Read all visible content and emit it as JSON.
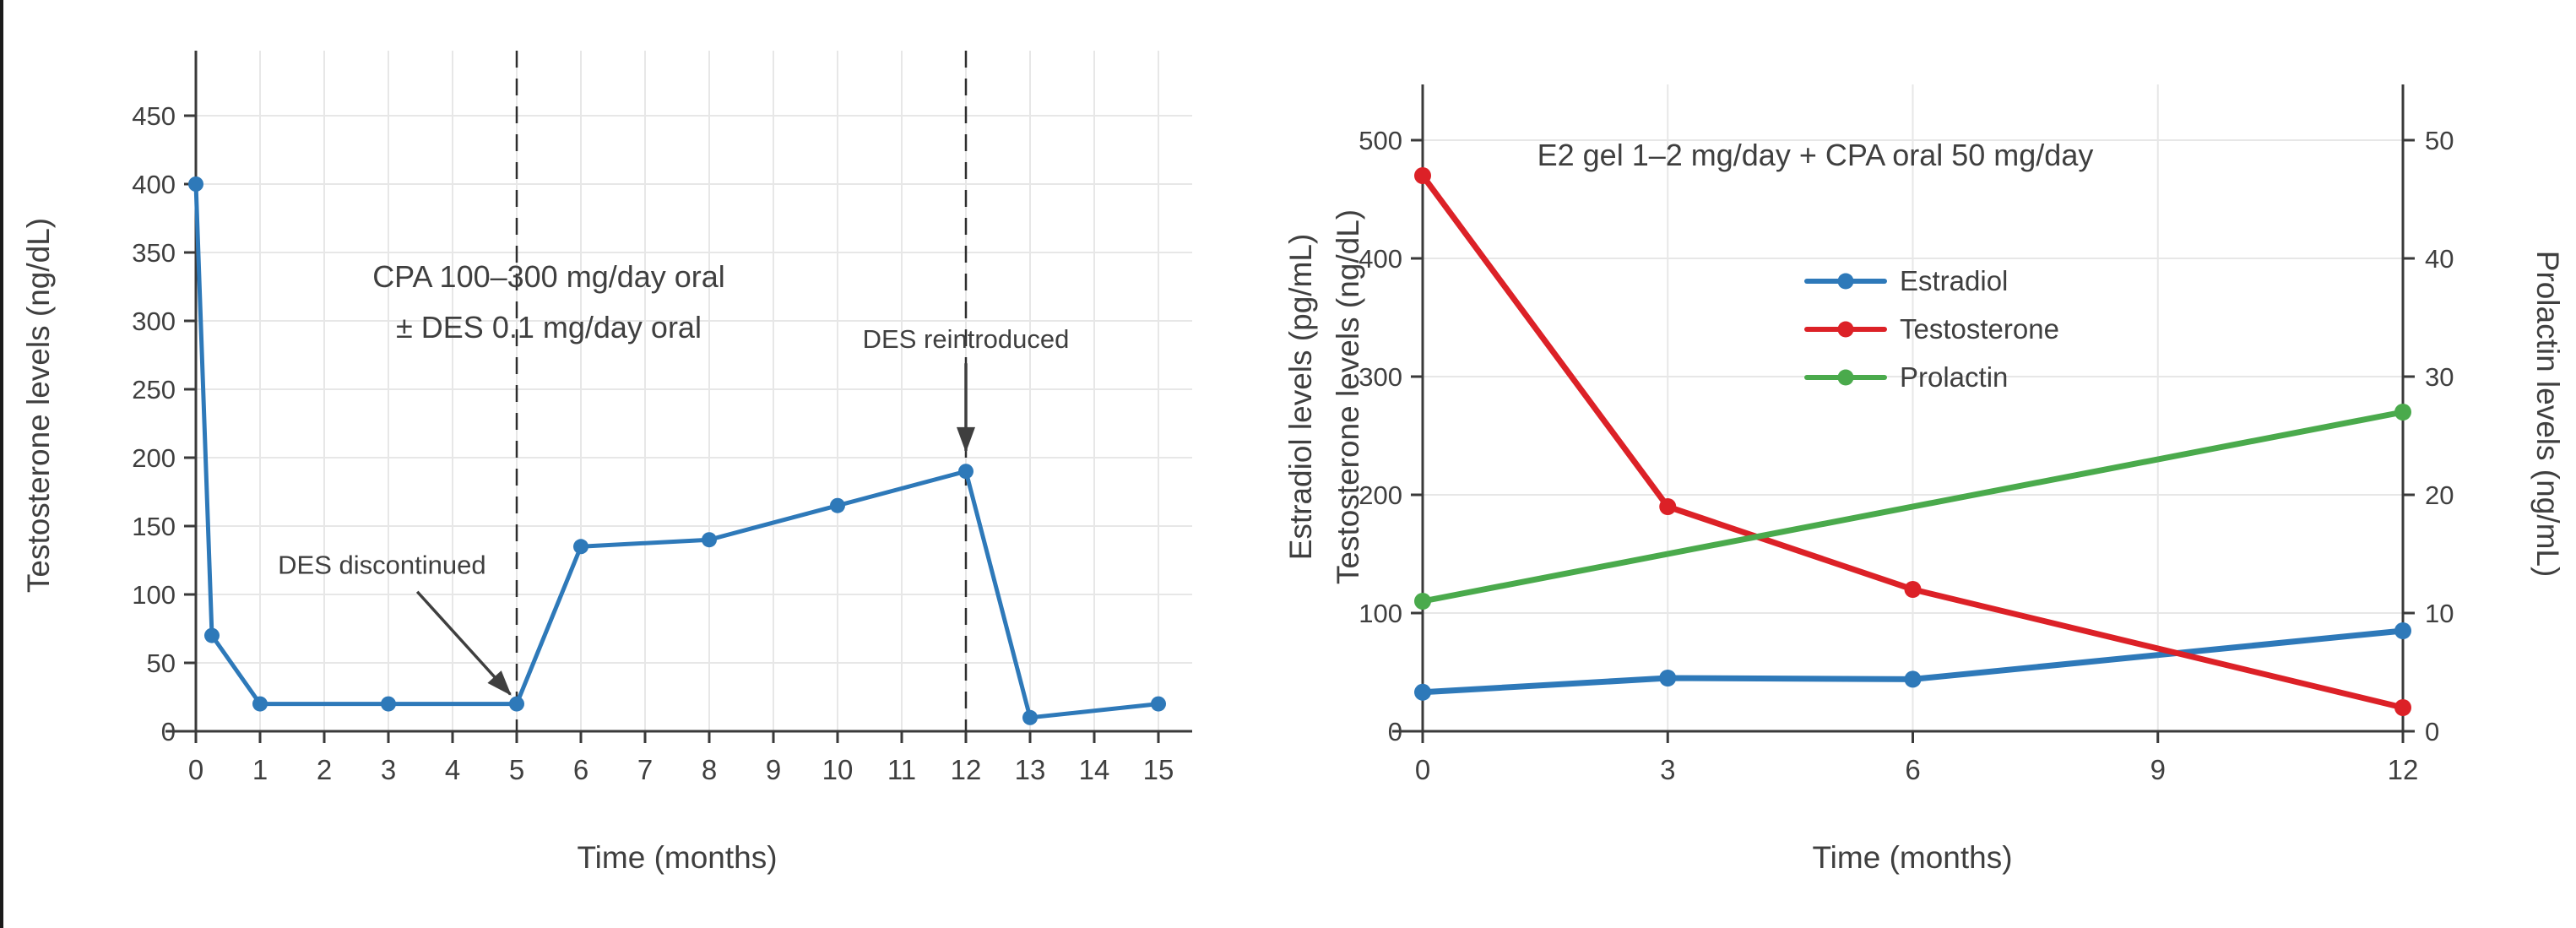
{
  "page": {
    "background": "#ffffff",
    "divider_color": "#1a1a1a"
  },
  "colors": {
    "blue": "#2e79b9",
    "red": "#dc2127",
    "green": "#4aaa4c",
    "text": "#3f3f3f",
    "spine": "#3a3a3a",
    "grid": "#e7e7e7",
    "dashed_line": "#2e2e2e",
    "arrow": "#3f3f3f"
  },
  "chart_data": [
    {
      "type": "line",
      "panel": "left",
      "title_lines": [
        "CPA 100–300 mg/day oral",
        "± DES 0.1 mg/day oral"
      ],
      "xlabel": "Time (months)",
      "ylabel": "Testosterone levels (ng/dL)",
      "xlim": [
        -0.5,
        15.5
      ],
      "ylim": [
        0,
        497
      ],
      "x_ticks": [
        0,
        1,
        2,
        3,
        4,
        5,
        6,
        7,
        8,
        9,
        10,
        11,
        12,
        13,
        14,
        15
      ],
      "y_ticks": [
        0,
        50,
        100,
        150,
        200,
        250,
        300,
        350,
        400,
        450
      ],
      "grid": true,
      "legend": null,
      "series": [
        {
          "name": "Testosterone",
          "color_key": "blue",
          "axis": "left",
          "markers": "all",
          "x": [
            0,
            0.25,
            1,
            3,
            5,
            6,
            8,
            10,
            12,
            13,
            15
          ],
          "y": [
            400,
            70,
            20,
            20,
            20,
            135,
            140,
            165,
            190,
            10,
            20
          ]
        }
      ],
      "vlines": [
        5,
        12
      ],
      "annotations": [
        {
          "text": "DES discontinued",
          "text_x": 2.9,
          "text_y": 122,
          "arrow": {
            "from_x": 3.45,
            "from_y": 102,
            "to_x": 4.9,
            "to_y": 27
          }
        },
        {
          "text": "DES reintroduced",
          "text_x": 12,
          "text_y": 287,
          "arrow": {
            "from_x": 12,
            "from_y": 269,
            "to_x": 12,
            "to_y": 205
          }
        }
      ]
    },
    {
      "type": "line",
      "panel": "right",
      "title": "E2 gel 1–2 mg/day + CPA oral 50 mg/day",
      "xlabel": "Time (months)",
      "ylabel_left_lines": [
        "Estradiol levels (pg/mL)",
        "Testosterone levels (ng/dL)"
      ],
      "ylabel_right": "Prolactin levels (ng/mL)",
      "xlim": [
        -0.5,
        12
      ],
      "ylim_left": [
        0,
        547
      ],
      "ylim_right": [
        0,
        54.7
      ],
      "x_ticks": [
        0,
        3,
        6,
        9,
        12
      ],
      "y_ticks_left": [
        0,
        100,
        200,
        300,
        400,
        500
      ],
      "y_ticks_right": [
        0,
        10,
        20,
        30,
        40,
        50
      ],
      "grid": true,
      "legend": {
        "position": "upper-right-of-center",
        "entries": [
          "Estradiol",
          "Testosterone",
          "Prolactin"
        ]
      },
      "series": [
        {
          "name": "Estradiol",
          "color_key": "blue",
          "axis": "left",
          "markers": "all",
          "x": [
            0,
            3,
            6,
            12
          ],
          "y": [
            33,
            45,
            44,
            85
          ]
        },
        {
          "name": "Testosterone",
          "color_key": "red",
          "axis": "left",
          "markers": "all",
          "x": [
            0,
            3,
            6,
            12
          ],
          "y": [
            470,
            190,
            120,
            20
          ]
        },
        {
          "name": "Prolactin",
          "color_key": "green",
          "axis": "right",
          "markers": "all",
          "x": [
            0,
            12
          ],
          "y": [
            11,
            27
          ]
        }
      ],
      "vlines": [],
      "annotations": []
    }
  ]
}
